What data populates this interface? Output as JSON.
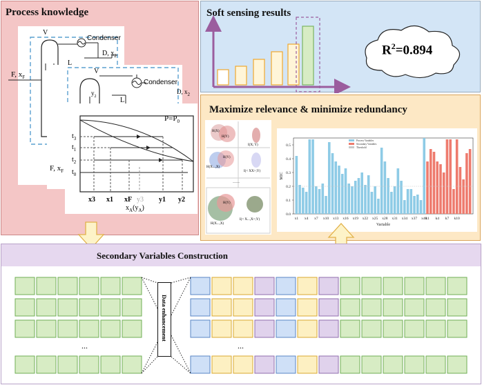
{
  "process_panel": {
    "title": "Process knowledge",
    "feed_label": "F, x",
    "feed_sub": "F",
    "condenser_label": "Condenser",
    "vapor_label": "V",
    "liquid_label": "L",
    "distillate_label": "D, x",
    "distillate_sub": "2",
    "distillate2_label": "D, x",
    "distillate2_sub": "2",
    "y_label": "y",
    "y_sub": "2",
    "feed2_label": "F, x",
    "feed2_sub": "F",
    "pressure_label": "P=P",
    "pressure_sub": "0",
    "t_labels": [
      "t",
      "t",
      "t",
      "t"
    ],
    "t_subs": [
      "3",
      "1",
      "2",
      "0"
    ],
    "x_tick_labels": [
      "x3",
      "x1",
      "xF",
      "y3",
      "y1",
      "y2"
    ],
    "x_axis_label": "x",
    "x_axis_sub": "A",
    "x_axis_paren": "(y",
    "x_axis_paren_sub": "A",
    "x_axis_close": ")"
  },
  "soft_panel": {
    "title": "Soft sensing results",
    "r2_text": "R",
    "r2_sup": "2",
    "r2_value": "=0.894"
  },
  "relevance_panel": {
    "title": "Maximize relevance & minimize redundancy",
    "venn_labels": [
      "H(X",
      ")",
      "H(Y)",
      "H(X",
      "...,X",
      ")",
      "H(Y)",
      "H(X",
      "...,X",
      ")",
      "H(Y)"
    ],
    "mini_labels": [
      "I",
      "(X",
      "; Y)",
      "I",
      "(< X",
      "X",
      ">;Y)",
      "I",
      "(< X",
      "...,X",
      ">;Y)"
    ],
    "chart_legend": [
      "Process Variables",
      "Secondary Variables",
      "Threshold"
    ],
    "chart_xlabel": "Variable",
    "chart_ylabel": "MIC",
    "chart_xticks": [
      "x1",
      "x4",
      "x7",
      "x10",
      "x13",
      "x16",
      "x19",
      "x22",
      "x25",
      "x28",
      "x31",
      "x34",
      "x37",
      "x40",
      "k1",
      "k4",
      "k7",
      "k10"
    ]
  },
  "secondary_panel": {
    "title": "Secondary Variables Construction",
    "enhance_label": "Data enhancement",
    "ellipsis": "..."
  },
  "chart_data": [
    {
      "type": "bar",
      "title": "",
      "xlabel": "Variable",
      "ylabel": "MIC",
      "ylim": [
        0,
        0.55
      ],
      "yticks": [
        0.0,
        0.1,
        0.2,
        0.3,
        0.4,
        0.5
      ],
      "series": [
        {
          "name": "Process Variables",
          "color": "#8ecbe6",
          "values": [
            0.42,
            0.21,
            0.19,
            0.16,
            0.54,
            0.54,
            0.2,
            0.18,
            0.22,
            0.13,
            0.52,
            0.44,
            0.38,
            0.35,
            0.29,
            0.33,
            0.22,
            0.2,
            0.24,
            0.26,
            0.3,
            0.21,
            0.28,
            0.16,
            0.2,
            0.11,
            0.48,
            0.38,
            0.26,
            0.16,
            0.2,
            0.33,
            0.24,
            0.1,
            0.18,
            0.18,
            0.13,
            0.14,
            0.1,
            0.55
          ]
        },
        {
          "name": "Secondary Variables",
          "color": "#ee7b6e",
          "values": [
            0.38,
            0.47,
            0.45,
            0.38,
            0.36,
            0.3,
            0.54,
            0.54,
            0.18,
            0.54,
            0.34,
            0.25,
            0.44,
            0.47
          ]
        }
      ],
      "threshold": {
        "name": "Threshold",
        "value": 0.2
      }
    }
  ]
}
